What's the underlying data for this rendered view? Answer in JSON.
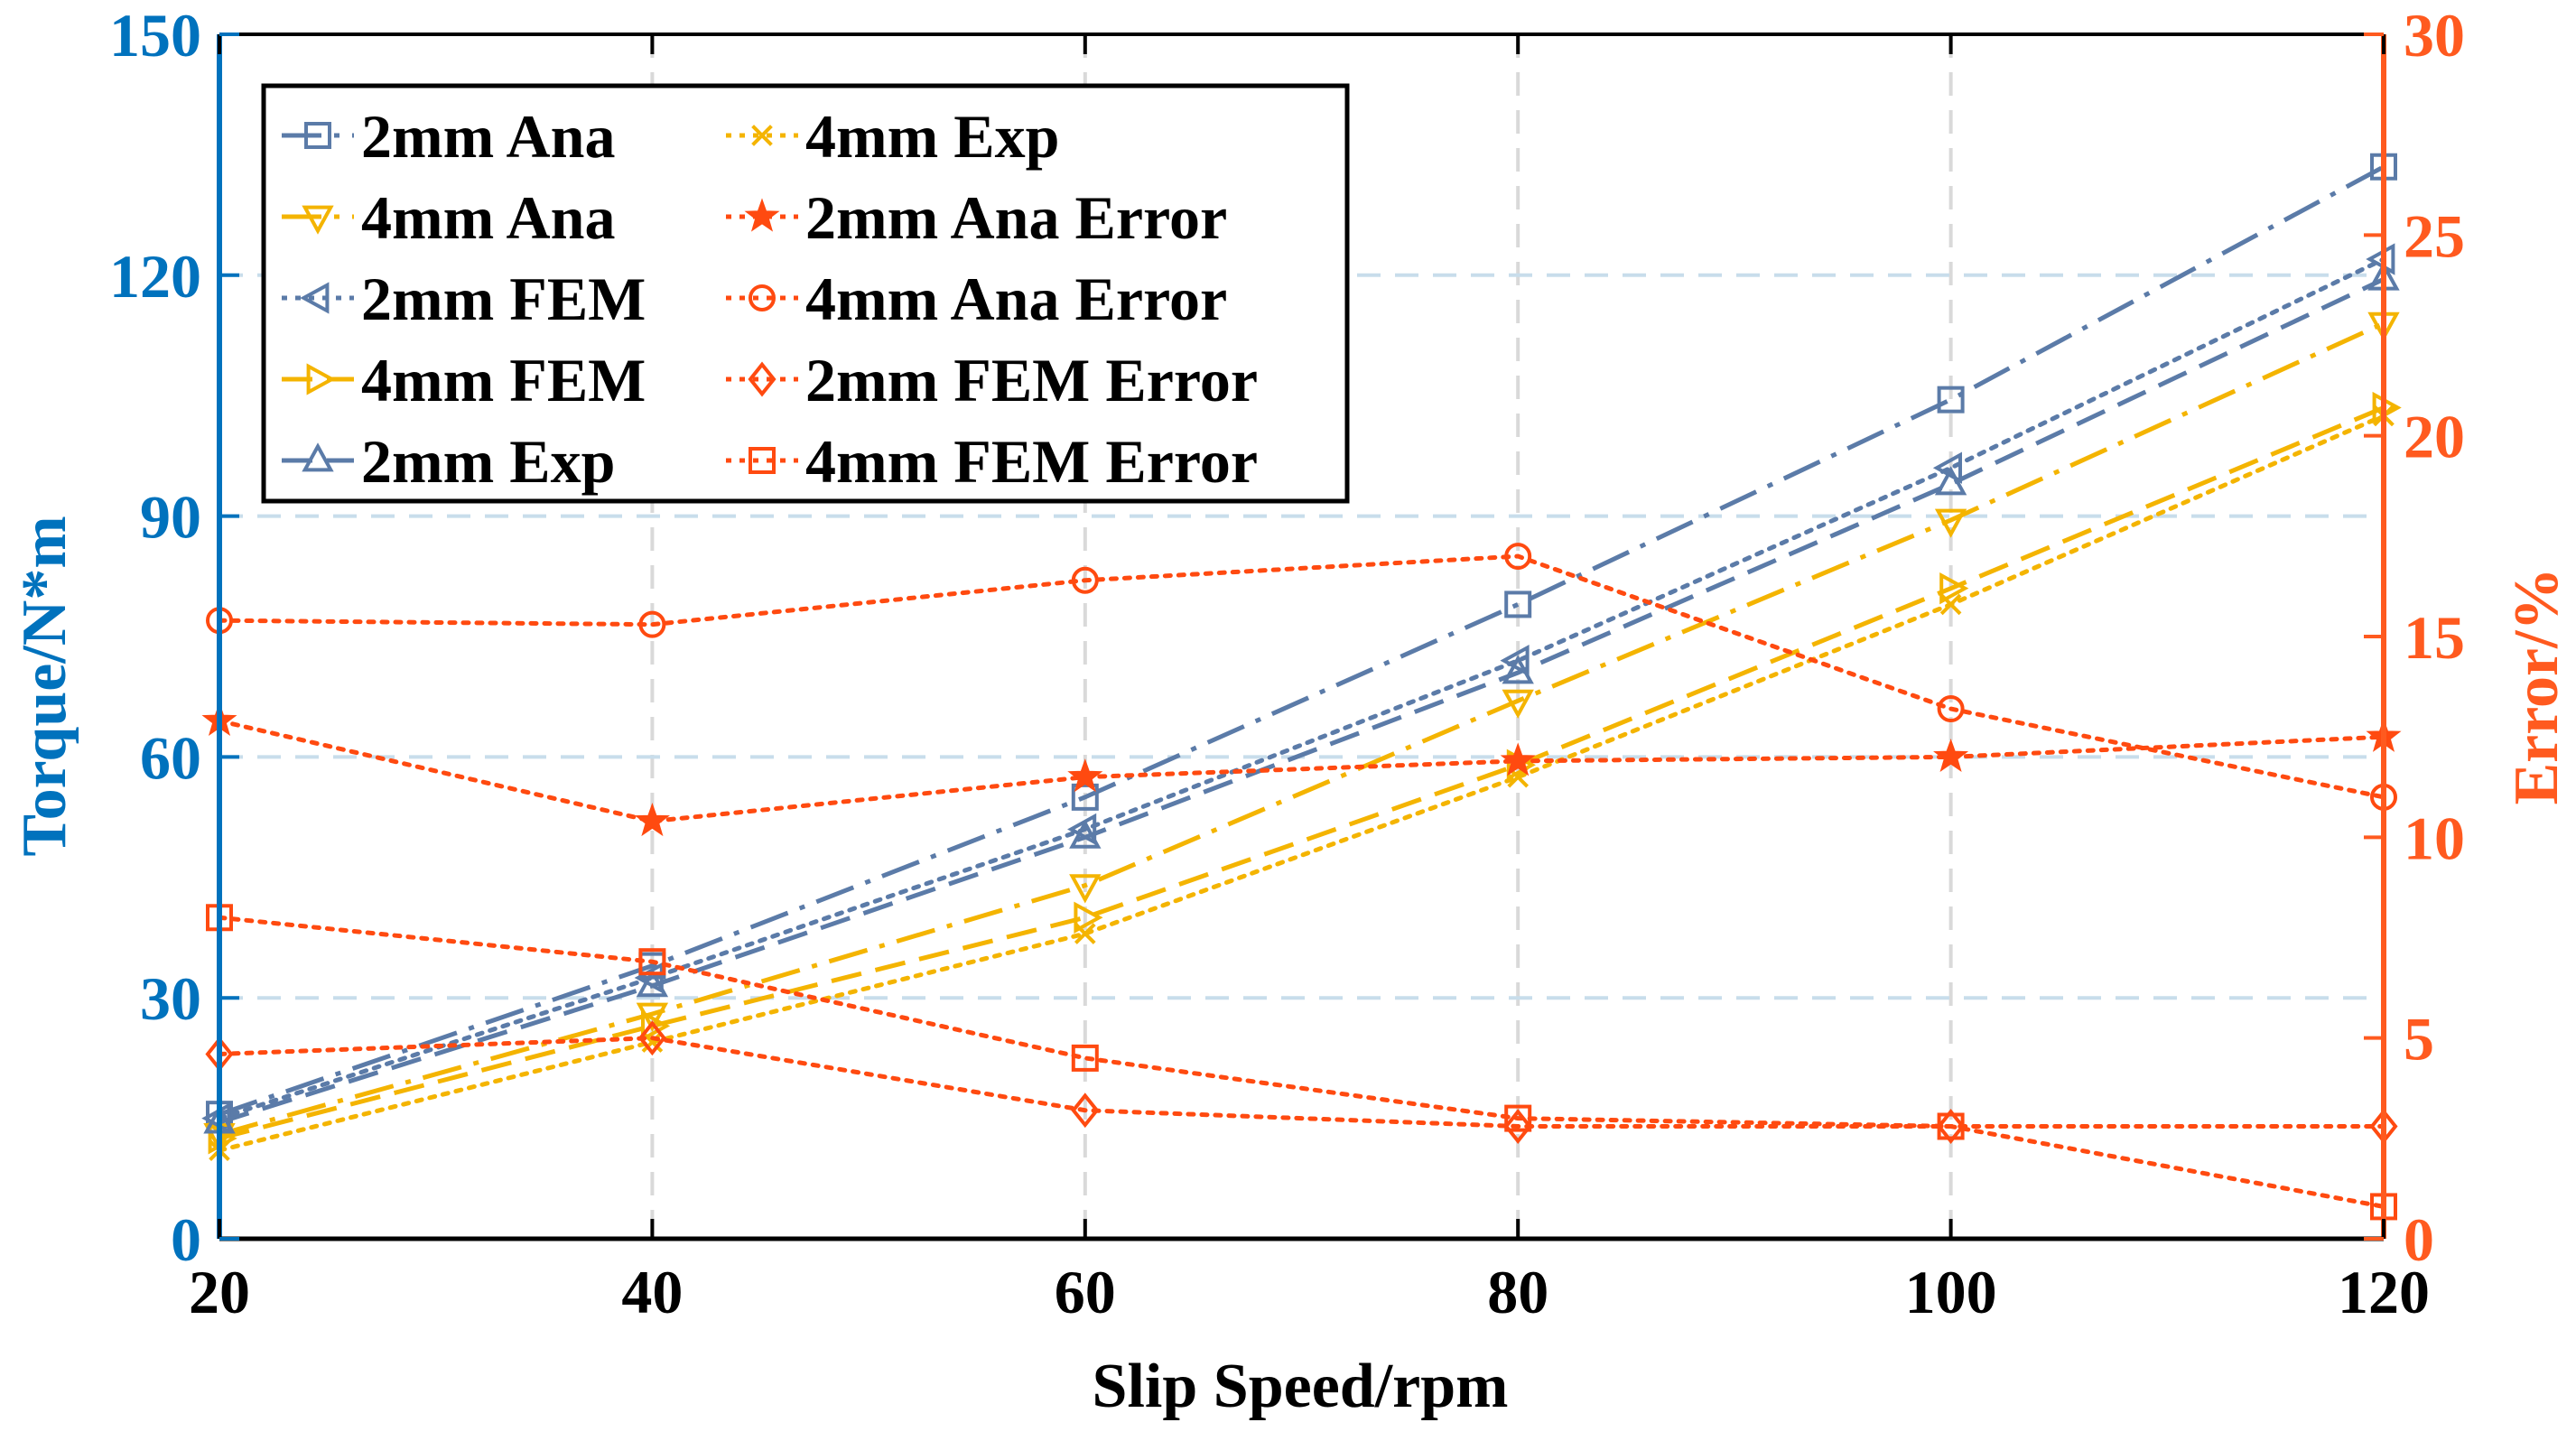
{
  "chart_data": {
    "type": "line",
    "x": [
      20,
      40,
      60,
      80,
      100,
      120
    ],
    "xlabel": "Slip Speed/rpm",
    "ylabel": "Torque/N*m",
    "y2label": "Error/%",
    "xlim": [
      20,
      120
    ],
    "ylim": [
      0,
      150
    ],
    "y2lim": [
      0,
      30
    ],
    "xticks": [
      "20",
      "40",
      "60",
      "80",
      "100",
      "120"
    ],
    "yticks": [
      "0",
      "30",
      "60",
      "90",
      "120",
      "150"
    ],
    "y2ticks": [
      "0",
      "5",
      "10",
      "15",
      "20",
      "25",
      "30"
    ],
    "grid": true,
    "legend_position": "top-left",
    "colors": {
      "left_axis": "#0072BD",
      "right_axis": "#FF5A1F",
      "blue_series": "#5B7BA8",
      "yellow_series": "#F4B400",
      "error_series": "#FF4A10",
      "grid": "#C8DDEB"
    },
    "series": [
      {
        "name": "2mm Ana",
        "axis": "left",
        "values": [
          15.5,
          34,
          55,
          79,
          104.5,
          133.5
        ],
        "color": "#5B7BA8",
        "dash": "long-dash-dot",
        "marker": "square"
      },
      {
        "name": "4mm Ana",
        "axis": "left",
        "values": [
          13,
          28,
          44,
          67,
          89.5,
          114
        ],
        "color": "#F4B400",
        "dash": "long-dash-dot",
        "marker": "triangle-down"
      },
      {
        "name": "2mm FEM",
        "axis": "left",
        "values": [
          15,
          32.5,
          51,
          72,
          96,
          122
        ],
        "color": "#5B7BA8",
        "dash": "dotted",
        "marker": "triangle-left"
      },
      {
        "name": "4mm FEM",
        "axis": "left",
        "values": [
          12.5,
          26.5,
          40,
          59,
          81,
          103.5
        ],
        "color": "#F4B400",
        "dash": "dashed",
        "marker": "triangle-right"
      },
      {
        "name": "2mm Exp",
        "axis": "left",
        "values": [
          14.5,
          31.5,
          50,
          70.5,
          94,
          119.5
        ],
        "color": "#5B7BA8",
        "dash": "dashed",
        "marker": "triangle-up"
      },
      {
        "name": "4mm Exp",
        "axis": "left",
        "values": [
          11,
          24.5,
          38,
          57.5,
          79,
          102.5
        ],
        "color": "#F4B400",
        "dash": "dotted",
        "marker": "x"
      },
      {
        "name": "2mm Ana Error",
        "axis": "right",
        "values": [
          12.9,
          10.4,
          11.5,
          11.9,
          12.0,
          12.5
        ],
        "color": "#FF4A10",
        "dash": "dotted",
        "marker": "star"
      },
      {
        "name": "4mm Ana Error",
        "axis": "right",
        "values": [
          15.4,
          15.3,
          16.4,
          17.0,
          13.2,
          11.0
        ],
        "color": "#FF4A10",
        "dash": "dotted",
        "marker": "circle"
      },
      {
        "name": "2mm FEM Error",
        "axis": "right",
        "values": [
          4.6,
          5.0,
          3.2,
          2.8,
          2.8,
          2.8
        ],
        "color": "#FF4A10",
        "dash": "dotted",
        "marker": "diamond"
      },
      {
        "name": "4mm FEM Error",
        "axis": "right",
        "values": [
          8.0,
          6.9,
          4.5,
          3.0,
          2.8,
          0.8
        ],
        "color": "#FF4A10",
        "dash": "dotted",
        "marker": "square"
      }
    ],
    "legend_layout": {
      "column1": [
        "2mm Ana",
        "4mm Ana",
        "2mm FEM",
        "4mm FEM",
        "2mm Exp"
      ],
      "column2": [
        "4mm Exp",
        "2mm Ana Error",
        "4mm Ana Error",
        "2mm FEM Error",
        "4mm FEM Error"
      ]
    }
  }
}
